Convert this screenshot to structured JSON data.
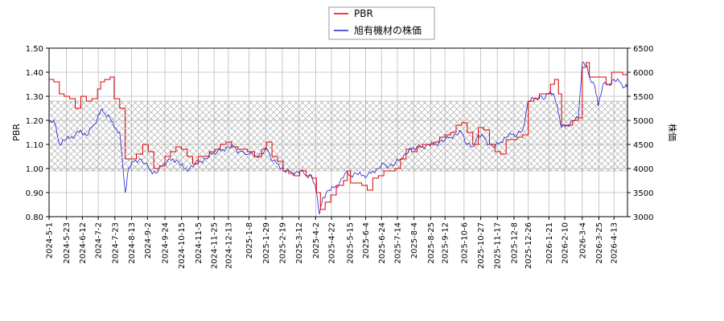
{
  "chart_data": {
    "type": "line",
    "legend": {
      "placement": "top-center",
      "entries": [
        "PBR",
        "旭有機材の株価"
      ]
    },
    "y_left": {
      "label": "PBR",
      "min": 0.8,
      "max": 1.5,
      "ticks": [
        "0.80",
        "0.90",
        "1.00",
        "1.10",
        "1.20",
        "1.30",
        "1.40",
        "1.50"
      ]
    },
    "y_right": {
      "label": "株価",
      "min": 3000,
      "max": 6500,
      "ticks": [
        "3000",
        "3500",
        "4000",
        "4500",
        "5000",
        "5500",
        "6000",
        "6500"
      ]
    },
    "x_start": "2024-05-01",
    "x_end": "2026-04-30",
    "x_ticks": [
      "2024-5-1",
      "2024-5-23",
      "2024-6-12",
      "2024-7-2",
      "2024-7-23",
      "2024-8-13",
      "2024-9-2",
      "2024-9-24",
      "2024-10-15",
      "2024-11-5",
      "2024-11-25",
      "2024-12-13",
      "2025-1-8",
      "2025-1-29",
      "2025-2-19",
      "2025-3-12",
      "2025-4-2",
      "2025-4-22",
      "2025-5-15",
      "2025-6-4",
      "2025-6-24",
      "2025-7-14",
      "2025-8-4",
      "2025-8-25",
      "2025-9-12",
      "2025-10-6",
      "2025-10-27",
      "2025-11-17",
      "2025-12-8",
      "2025-12-26",
      "2026-1-21",
      "2026-2-10",
      "2026-3-4",
      "2026-3-25",
      "2026-4-13"
    ],
    "shaded_band_pbr": [
      0.99,
      1.28
    ],
    "grid": true,
    "colors": {
      "pbr": "#dd0000",
      "price": "#2222cc",
      "grid": "#bbbbbb",
      "band": "#999999"
    },
    "series": [
      {
        "name": "PBR",
        "axis": "left",
        "points": [
          [
            "2024-05-01",
            1.37
          ],
          [
            "2024-05-07",
            1.36
          ],
          [
            "2024-05-14",
            1.31
          ],
          [
            "2024-05-20",
            1.3
          ],
          [
            "2024-05-27",
            1.29
          ],
          [
            "2024-06-03",
            1.25
          ],
          [
            "2024-06-10",
            1.3
          ],
          [
            "2024-06-17",
            1.28
          ],
          [
            "2024-06-24",
            1.29
          ],
          [
            "2024-07-01",
            1.33
          ],
          [
            "2024-07-05",
            1.36
          ],
          [
            "2024-07-10",
            1.37
          ],
          [
            "2024-07-17",
            1.38
          ],
          [
            "2024-07-22",
            1.29
          ],
          [
            "2024-07-29",
            1.25
          ],
          [
            "2024-08-05",
            1.04
          ],
          [
            "2024-08-12",
            1.04
          ],
          [
            "2024-08-19",
            1.06
          ],
          [
            "2024-08-27",
            1.1
          ],
          [
            "2024-09-03",
            1.07
          ],
          [
            "2024-09-10",
            1.0
          ],
          [
            "2024-09-17",
            1.01
          ],
          [
            "2024-09-24",
            1.05
          ],
          [
            "2024-10-01",
            1.07
          ],
          [
            "2024-10-08",
            1.09
          ],
          [
            "2024-10-15",
            1.08
          ],
          [
            "2024-10-22",
            1.05
          ],
          [
            "2024-10-29",
            1.02
          ],
          [
            "2024-11-05",
            1.05
          ],
          [
            "2024-11-12",
            1.05
          ],
          [
            "2024-11-19",
            1.07
          ],
          [
            "2024-11-26",
            1.08
          ],
          [
            "2024-12-03",
            1.1
          ],
          [
            "2024-12-10",
            1.11
          ],
          [
            "2024-12-17",
            1.09
          ],
          [
            "2024-12-25",
            1.08
          ],
          [
            "2025-01-06",
            1.07
          ],
          [
            "2025-01-15",
            1.05
          ],
          [
            "2025-01-24",
            1.08
          ],
          [
            "2025-01-30",
            1.11
          ],
          [
            "2025-02-06",
            1.05
          ],
          [
            "2025-02-13",
            1.03
          ],
          [
            "2025-02-20",
            0.99
          ],
          [
            "2025-02-27",
            0.98
          ],
          [
            "2025-03-06",
            0.97
          ],
          [
            "2025-03-13",
            0.99
          ],
          [
            "2025-03-21",
            0.97
          ],
          [
            "2025-03-28",
            0.96
          ],
          [
            "2025-04-03",
            0.9
          ],
          [
            "2025-04-08",
            0.83
          ],
          [
            "2025-04-14",
            0.86
          ],
          [
            "2025-04-21",
            0.89
          ],
          [
            "2025-04-28",
            0.93
          ],
          [
            "2025-05-07",
            0.95
          ],
          [
            "2025-05-12",
            0.99
          ],
          [
            "2025-05-16",
            0.94
          ],
          [
            "2025-05-23",
            0.94
          ],
          [
            "2025-05-30",
            0.93
          ],
          [
            "2025-06-06",
            0.91
          ],
          [
            "2025-06-13",
            0.96
          ],
          [
            "2025-06-20",
            0.97
          ],
          [
            "2025-06-27",
            0.99
          ],
          [
            "2025-07-04",
            0.99
          ],
          [
            "2025-07-11",
            1.0
          ],
          [
            "2025-07-18",
            1.04
          ],
          [
            "2025-07-25",
            1.08
          ],
          [
            "2025-08-01",
            1.07
          ],
          [
            "2025-08-08",
            1.09
          ],
          [
            "2025-08-15",
            1.1
          ],
          [
            "2025-08-22",
            1.1
          ],
          [
            "2025-08-29",
            1.11
          ],
          [
            "2025-09-05",
            1.13
          ],
          [
            "2025-09-12",
            1.14
          ],
          [
            "2025-09-19",
            1.15
          ],
          [
            "2025-09-26",
            1.18
          ],
          [
            "2025-10-03",
            1.19
          ],
          [
            "2025-10-10",
            1.15
          ],
          [
            "2025-10-17",
            1.1
          ],
          [
            "2025-10-24",
            1.17
          ],
          [
            "2025-10-31",
            1.16
          ],
          [
            "2025-11-07",
            1.1
          ],
          [
            "2025-11-14",
            1.07
          ],
          [
            "2025-11-21",
            1.06
          ],
          [
            "2025-11-28",
            1.12
          ],
          [
            "2025-12-05",
            1.12
          ],
          [
            "2025-12-12",
            1.13
          ],
          [
            "2025-12-19",
            1.14
          ],
          [
            "2025-12-26",
            1.28
          ],
          [
            "2026-01-02",
            1.29
          ],
          [
            "2026-01-09",
            1.31
          ],
          [
            "2026-01-16",
            1.31
          ],
          [
            "2026-01-23",
            1.35
          ],
          [
            "2026-01-28",
            1.37
          ],
          [
            "2026-02-02",
            1.31
          ],
          [
            "2026-02-06",
            1.18
          ],
          [
            "2026-02-13",
            1.18
          ],
          [
            "2026-02-20",
            1.2
          ],
          [
            "2026-02-27",
            1.21
          ],
          [
            "2026-03-04",
            1.42
          ],
          [
            "2026-03-09",
            1.44
          ],
          [
            "2026-03-13",
            1.38
          ],
          [
            "2026-03-20",
            1.38
          ],
          [
            "2026-03-27",
            1.38
          ],
          [
            "2026-04-03",
            1.35
          ],
          [
            "2026-04-10",
            1.4
          ],
          [
            "2026-04-17",
            1.4
          ],
          [
            "2026-04-24",
            1.39
          ],
          [
            "2026-04-30",
            1.38
          ]
        ]
      },
      {
        "name": "旭有機材の株価",
        "axis": "right",
        "points": [
          [
            "2024-05-01",
            4950
          ],
          [
            "2024-05-07",
            5000
          ],
          [
            "2024-05-14",
            4500
          ],
          [
            "2024-05-20",
            4600
          ],
          [
            "2024-05-27",
            4620
          ],
          [
            "2024-06-03",
            4700
          ],
          [
            "2024-06-10",
            4800
          ],
          [
            "2024-06-17",
            4680
          ],
          [
            "2024-06-24",
            4850
          ],
          [
            "2024-07-01",
            5050
          ],
          [
            "2024-07-05",
            5200
          ],
          [
            "2024-07-10",
            5150
          ],
          [
            "2024-07-17",
            5050
          ],
          [
            "2024-07-22",
            4850
          ],
          [
            "2024-07-29",
            4750
          ],
          [
            "2024-08-05",
            3500
          ],
          [
            "2024-08-09",
            4000
          ],
          [
            "2024-08-16",
            4150
          ],
          [
            "2024-08-23",
            4200
          ],
          [
            "2024-08-30",
            4100
          ],
          [
            "2024-09-06",
            3950
          ],
          [
            "2024-09-13",
            3900
          ],
          [
            "2024-09-20",
            4050
          ],
          [
            "2024-09-27",
            4150
          ],
          [
            "2024-10-04",
            4200
          ],
          [
            "2024-10-11",
            4150
          ],
          [
            "2024-10-18",
            4000
          ],
          [
            "2024-10-25",
            4000
          ],
          [
            "2024-11-01",
            4100
          ],
          [
            "2024-11-08",
            4150
          ],
          [
            "2024-11-15",
            4200
          ],
          [
            "2024-11-22",
            4300
          ],
          [
            "2024-11-29",
            4350
          ],
          [
            "2024-12-06",
            4400
          ],
          [
            "2024-12-13",
            4450
          ],
          [
            "2024-12-20",
            4450
          ],
          [
            "2024-12-27",
            4350
          ],
          [
            "2025-01-08",
            4300
          ],
          [
            "2025-01-17",
            4250
          ],
          [
            "2025-01-24",
            4300
          ],
          [
            "2025-01-31",
            4400
          ],
          [
            "2025-02-07",
            4150
          ],
          [
            "2025-02-14",
            4100
          ],
          [
            "2025-02-21",
            3950
          ],
          [
            "2025-02-28",
            3950
          ],
          [
            "2025-03-07",
            3900
          ],
          [
            "2025-03-14",
            3950
          ],
          [
            "2025-03-21",
            3850
          ],
          [
            "2025-03-28",
            3850
          ],
          [
            "2025-04-03",
            3500
          ],
          [
            "2025-04-07",
            3050
          ],
          [
            "2025-04-11",
            3400
          ],
          [
            "2025-04-18",
            3550
          ],
          [
            "2025-04-25",
            3600
          ],
          [
            "2025-05-02",
            3700
          ],
          [
            "2025-05-09",
            3900
          ],
          [
            "2025-05-16",
            3850
          ],
          [
            "2025-05-23",
            3900
          ],
          [
            "2025-05-30",
            3850
          ],
          [
            "2025-06-06",
            3850
          ],
          [
            "2025-06-13",
            3950
          ],
          [
            "2025-06-20",
            4000
          ],
          [
            "2025-06-27",
            4100
          ],
          [
            "2025-07-04",
            4050
          ],
          [
            "2025-07-11",
            4100
          ],
          [
            "2025-07-18",
            4200
          ],
          [
            "2025-07-25",
            4300
          ],
          [
            "2025-08-01",
            4400
          ],
          [
            "2025-08-08",
            4450
          ],
          [
            "2025-08-15",
            4450
          ],
          [
            "2025-08-22",
            4500
          ],
          [
            "2025-08-29",
            4500
          ],
          [
            "2025-09-05",
            4550
          ],
          [
            "2025-09-12",
            4600
          ],
          [
            "2025-09-19",
            4650
          ],
          [
            "2025-09-26",
            4700
          ],
          [
            "2025-10-03",
            4750
          ],
          [
            "2025-10-10",
            4500
          ],
          [
            "2025-10-17",
            4450
          ],
          [
            "2025-10-24",
            4700
          ],
          [
            "2025-10-31",
            4650
          ],
          [
            "2025-11-07",
            4500
          ],
          [
            "2025-11-14",
            4450
          ],
          [
            "2025-11-21",
            4550
          ],
          [
            "2025-11-28",
            4650
          ],
          [
            "2025-12-05",
            4700
          ],
          [
            "2025-12-12",
            4700
          ],
          [
            "2025-12-19",
            4800
          ],
          [
            "2025-12-26",
            5400
          ],
          [
            "2026-01-02",
            5450
          ],
          [
            "2026-01-09",
            5500
          ],
          [
            "2026-01-16",
            5450
          ],
          [
            "2026-01-23",
            5600
          ],
          [
            "2026-01-28",
            5500
          ],
          [
            "2026-02-02",
            5150
          ],
          [
            "2026-02-06",
            4850
          ],
          [
            "2026-02-13",
            4900
          ],
          [
            "2026-02-20",
            5000
          ],
          [
            "2026-02-27",
            5050
          ],
          [
            "2026-03-04",
            6200
          ],
          [
            "2026-03-09",
            6150
          ],
          [
            "2026-03-13",
            5900
          ],
          [
            "2026-03-20",
            5700
          ],
          [
            "2026-03-24",
            5300
          ],
          [
            "2026-03-30",
            5750
          ],
          [
            "2026-04-06",
            5750
          ],
          [
            "2026-04-13",
            5850
          ],
          [
            "2026-04-20",
            5800
          ],
          [
            "2026-04-27",
            5700
          ],
          [
            "2026-04-30",
            5750
          ]
        ]
      }
    ]
  }
}
